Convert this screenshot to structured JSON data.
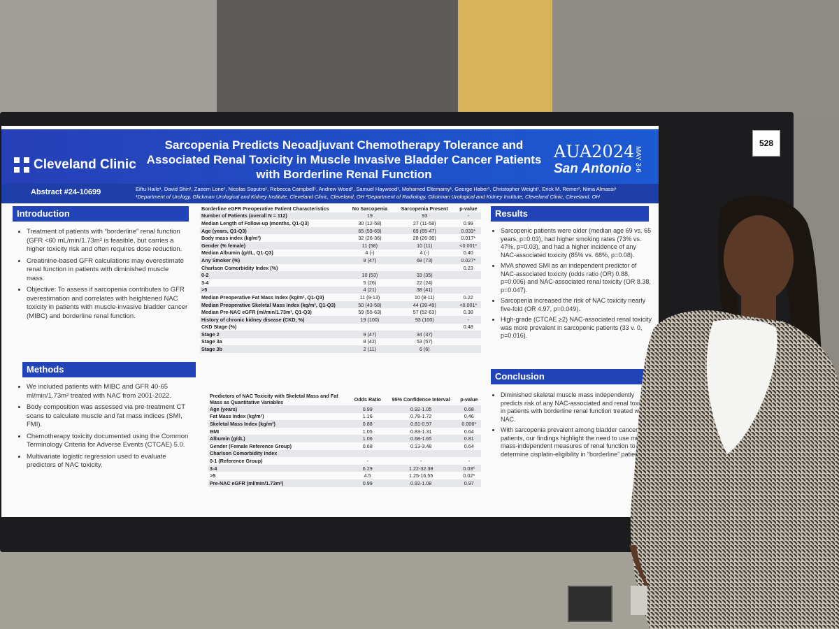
{
  "poster": {
    "logo": "Cleveland Clinic",
    "title": "Sarcopenia Predicts Neoadjuvant Chemotherapy Tolerance and Associated Renal Toxicity in Muscle Invasive Bladder Cancer Patients with Borderline Renal Function",
    "aua_top": "AUA2024",
    "aua_city": "San Antonio",
    "aua_date": "MAY 3-6",
    "abstract": "Abstract #24-10699",
    "authors": "Eiftu Haile¹, David Shin¹, Zaeem Lone¹, Nicolas Soputro¹, Rebecca Campbell¹, Andrew Wood¹, Samuel Haywood¹, Mohamed Eltemamy¹, George Haber¹, Christopher Weight¹, Erick M. Remer², Nima Almassi¹",
    "affiliations": "¹Department of Urology, Glickman Urological and Kidney Institute, Cleveland Clinic, Cleveland, OH ²Department of Radiology, Glickman Urological and Kidney Institute, Cleveland Clinic, Cleveland, OH",
    "intro_title": "Introduction",
    "intro": [
      "Treatment of patients with “borderline” renal function (GFR <60 mL/min/1.73m² is feasible, but carries a higher toxicity risk and often requires dose reduction.",
      "Creatinine-based GFR calculations may overestimate renal function in patients with diminished muscle mass.",
      "Objective: To assess if sarcopenia contributes to GFR overestimation and correlates with heightened NAC toxicity in patients with muscle-invasive bladder cancer (MIBC) and borderline renal function."
    ],
    "methods_title": "Methods",
    "methods": [
      "We included patients with MIBC and GFR 40-65 ml/min/1.73m² treated with NAC from 2001-2022.",
      "Body composition was assessed via pre-treatment CT scans to calculate muscle and fat mass indices (SMI, FMI).",
      "Chemotherapy toxicity documented using the Common Terminology Criteria for Adverse Events (CTCAE) 5.0.",
      "Multivariate logistic regression used to evaluate predictors of NAC toxicity."
    ],
    "results_title": "Results",
    "results": [
      "Sarcopenic patients were older (median age 69 vs. 65 years, p=0.03), had higher smoking rates (73% vs. 47%, p=0.03), and had a higher incidence of any NAC-associated toxicity (85% vs. 68%, p=0.08).",
      "MVA showed SMI as an independent predictor of NAC-associated toxicity (odds ratio (OR) 0.88, p=0.006) and NAC-associated renal toxicity (OR 8.38, p=0.047).",
      "Sarcopenia increased the risk of NAC toxicity nearly five-fold (OR 4.97, p=0.049).",
      "High-grade (CTCAE ≥2) NAC-associated renal toxicity was more prevalent in sarcopenic patients (33 v. 0, p=0.016)."
    ],
    "conclusion_title": "Conclusion",
    "conclusion": [
      "Diminished skeletal muscle mass independently predicts risk of any NAC-associated and renal toxicity in patients with borderline renal function treated with NAC.",
      "With sarcopenia prevalent among bladder cancer patients, our findings highlight the need to use muscle mass-independent measures of renal function to determine cisplatin-eligibility in “borderline” patients."
    ],
    "table1": {
      "headers": [
        "Borderline eGFR Preoperative Patient Characteristics",
        "No Sarcopenia",
        "Sarcopenia Present",
        "p-value"
      ],
      "rows": [
        [
          "Number of Patients (overall N = 112)",
          "19",
          "93",
          "-"
        ],
        [
          "Median Length of Follow-up (months, Q1-Q3)",
          "30 (12-58)",
          "27 (11-58)",
          "0.99"
        ],
        [
          "Age (years, Q1-Q3)",
          "65 (59-69)",
          "69 (65-47)",
          "0.033*"
        ],
        [
          "Body mass index (kg/m²)",
          "32 (26-36)",
          "28 (26-30)",
          "0.017*"
        ],
        [
          "Gender (% female)",
          "11 (58)",
          "10 (11)",
          "<0.001*"
        ],
        [
          "Median Albumin (g/dL, Q1-Q3)",
          "4 (-)",
          "4 (-)",
          "0.40"
        ],
        [
          "Any Smoker (%)",
          "9 (47)",
          "68 (73)",
          "0.027*"
        ],
        [
          "Charlson Comorbidity Index (%)",
          "",
          "",
          "0.23"
        ],
        [
          "0-2",
          "10 (53)",
          "33 (35)",
          ""
        ],
        [
          "3-4",
          "5 (26)",
          "22 (24)",
          ""
        ],
        [
          ">5",
          "4 (21)",
          "38 (41)",
          ""
        ],
        [
          "Median Preoperative Fat Mass Index (kg/m², Q1-Q3)",
          "11 (9-13)",
          "10 (8-11)",
          "0.22"
        ],
        [
          "Median Preoperative Skeletal Mass Index (kg/m², Q1-Q3)",
          "50 (43-58)",
          "44 (39-49)",
          "<0.001*"
        ],
        [
          "Median Pre-NAC eGFR (ml/min/1.73m², Q1-Q3)",
          "59 (55-63)",
          "57 (52-63)",
          "0.38"
        ],
        [
          "History of chronic kidney disease (CKD, %)",
          "19 (100)",
          "93 (100)",
          "-"
        ],
        [
          "CKD Stage (%)",
          "",
          "",
          "0.48"
        ],
        [
          "Stage 2",
          "9 (47)",
          "34 (37)",
          ""
        ],
        [
          "Stage 3a",
          "8 (42)",
          "53 (57)",
          ""
        ],
        [
          "Stage 3b",
          "2 (11)",
          "6 (6)",
          ""
        ]
      ]
    },
    "table2": {
      "headers": [
        "Predictors of NAC Toxicity with Skeletal Mass and Fat Mass as Quantitative Variables",
        "Odds Ratio",
        "95% Confidence Interval",
        "p-value"
      ],
      "rows": [
        [
          "Age (years)",
          "0.99",
          "0.92-1.05",
          "0.68"
        ],
        [
          "Fat Mass Index (kg/m²)",
          "1.16",
          "0.78-1.72",
          "0.46"
        ],
        [
          "Skeletal Mass Index (kg/m²)",
          "0.88",
          "0.81-0.97",
          "0.006*"
        ],
        [
          "BMI",
          "1.05",
          "0.83-1.31",
          "0.64"
        ],
        [
          "Albumin (g/dL)",
          "1.06",
          "0.68-1.65",
          "0.81"
        ],
        [
          "Gender (Female Reference Group)",
          "0.68",
          "0.13-3.48",
          "0.64"
        ],
        [
          "Charlson Comorbidity Index",
          "",
          "",
          ""
        ],
        [
          "0-1 (Reference Group)",
          "-",
          "-",
          "-"
        ],
        [
          "3-4",
          "6.29",
          "1.22-32.38",
          "0.03*"
        ],
        [
          ">5",
          "4.5",
          "1.25-16.55",
          "0.02*"
        ],
        [
          "Pre-NAC eGFR (ml/min/1.73m²)",
          "0.99",
          "0.92-1.08",
          "0.97"
        ]
      ]
    }
  },
  "board_number": "528"
}
